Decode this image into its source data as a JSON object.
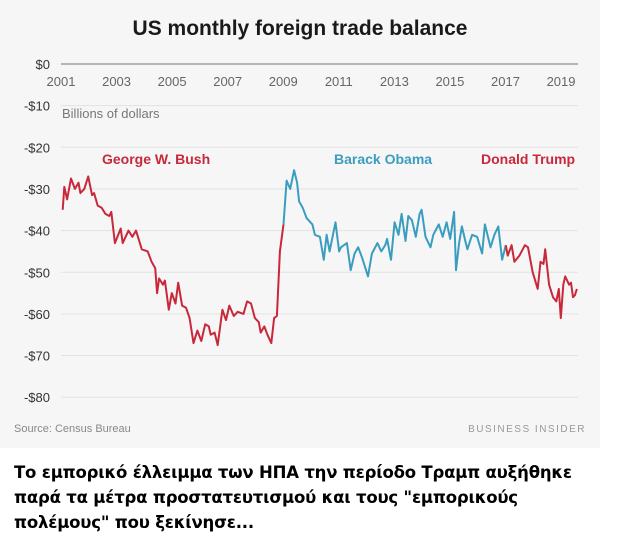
{
  "caption": "Το εμπορικό έλλειμμα των ΗΠΑ την περίοδο Τραμπ αυξήθηκε παρά τα μέτρα προστατευτισμού και τους \"εμπορικούς πολέμους\" που ξεκίνησε...",
  "chart_data": {
    "type": "line",
    "title": "US monthly foreign trade balance",
    "ylabel": "Billions of dollars",
    "xlabel": "",
    "source": "Source: Census Bureau",
    "brand": "BUSINESS INSIDER",
    "xlim": [
      2001,
      2019.6
    ],
    "ylim": [
      -80,
      0
    ],
    "x_ticks": [
      "2001",
      "2003",
      "2005",
      "2007",
      "2009",
      "2011",
      "2013",
      "2015",
      "2017",
      "2019"
    ],
    "y_ticks": [
      {
        "v": 0,
        "label": "$0"
      },
      {
        "v": -10,
        "label": "-$10"
      },
      {
        "v": -20,
        "label": "-$20"
      },
      {
        "v": -30,
        "label": "-$30"
      },
      {
        "v": -40,
        "label": "-$40"
      },
      {
        "v": -50,
        "label": "-$50"
      },
      {
        "v": -60,
        "label": "-$60"
      },
      {
        "v": -70,
        "label": "-$70"
      },
      {
        "v": -80,
        "label": "-$80"
      }
    ],
    "grid": true,
    "series": [
      {
        "name": "George W. Bush",
        "color": "#c8283a",
        "label_year": 2003.3,
        "points": [
          [
            2001.06,
            -35
          ],
          [
            2001.12,
            -29.5
          ],
          [
            2001.22,
            -32.5
          ],
          [
            2001.36,
            -27.5
          ],
          [
            2001.5,
            -30
          ],
          [
            2001.63,
            -28.5
          ],
          [
            2001.7,
            -31
          ],
          [
            2001.84,
            -30
          ],
          [
            2001.98,
            -27
          ],
          [
            2002.12,
            -31.5
          ],
          [
            2002.19,
            -31
          ],
          [
            2002.32,
            -34
          ],
          [
            2002.46,
            -34.5
          ],
          [
            2002.6,
            -36
          ],
          [
            2002.74,
            -36.5
          ],
          [
            2002.81,
            -35.5
          ],
          [
            2002.94,
            -43
          ],
          [
            2003.15,
            -39.5
          ],
          [
            2003.22,
            -43
          ],
          [
            2003.43,
            -40
          ],
          [
            2003.57,
            -41.5
          ],
          [
            2003.7,
            -40
          ],
          [
            2003.91,
            -44.5
          ],
          [
            2004.12,
            -45
          ],
          [
            2004.26,
            -47.5
          ],
          [
            2004.39,
            -49
          ],
          [
            2004.46,
            -55
          ],
          [
            2004.53,
            -51.5
          ],
          [
            2004.67,
            -53
          ],
          [
            2004.74,
            -52
          ],
          [
            2004.88,
            -59
          ],
          [
            2004.99,
            -55
          ],
          [
            2005.12,
            -57.5
          ],
          [
            2005.22,
            -52.5
          ],
          [
            2005.36,
            -58
          ],
          [
            2005.5,
            -58.5
          ],
          [
            2005.63,
            -61
          ],
          [
            2005.77,
            -67
          ],
          [
            2005.91,
            -64
          ],
          [
            2006.05,
            -66.5
          ],
          [
            2006.19,
            -62.5
          ],
          [
            2006.32,
            -63
          ],
          [
            2006.39,
            -65
          ],
          [
            2006.53,
            -64.5
          ],
          [
            2006.64,
            -67.5
          ],
          [
            2006.81,
            -59
          ],
          [
            2006.94,
            -61.5
          ],
          [
            2007.06,
            -58
          ],
          [
            2007.22,
            -60.5
          ],
          [
            2007.36,
            -59.5
          ],
          [
            2007.57,
            -60
          ],
          [
            2007.7,
            -57
          ],
          [
            2007.84,
            -57.5
          ],
          [
            2007.98,
            -61
          ],
          [
            2008.12,
            -62
          ],
          [
            2008.19,
            -64.5
          ],
          [
            2008.32,
            -63
          ],
          [
            2008.43,
            -65
          ],
          [
            2008.57,
            -67
          ],
          [
            2008.67,
            -61
          ],
          [
            2008.77,
            -60.5
          ],
          [
            2008.88,
            -45
          ],
          [
            2009.01,
            -38.5
          ]
        ]
      },
      {
        "name": "Barack Obama",
        "color": "#3a9dbf",
        "label_year": 2012.3,
        "points": [
          [
            2009.01,
            -38.5
          ],
          [
            2009.12,
            -28
          ],
          [
            2009.25,
            -30
          ],
          [
            2009.39,
            -25.5
          ],
          [
            2009.5,
            -28.5
          ],
          [
            2009.57,
            -33
          ],
          [
            2009.7,
            -34.5
          ],
          [
            2009.84,
            -37
          ],
          [
            2010.05,
            -38.5
          ],
          [
            2010.14,
            -41
          ],
          [
            2010.32,
            -41.5
          ],
          [
            2010.46,
            -47
          ],
          [
            2010.56,
            -41
          ],
          [
            2010.67,
            -45
          ],
          [
            2010.88,
            -38
          ],
          [
            2011.01,
            -45
          ],
          [
            2011.08,
            -44
          ],
          [
            2011.29,
            -43
          ],
          [
            2011.43,
            -49.5
          ],
          [
            2011.57,
            -45.5
          ],
          [
            2011.7,
            -44
          ],
          [
            2011.84,
            -46.5
          ],
          [
            2012.05,
            -51
          ],
          [
            2012.19,
            -45.5
          ],
          [
            2012.39,
            -43
          ],
          [
            2012.53,
            -45
          ],
          [
            2012.67,
            -43.5
          ],
          [
            2012.74,
            -42
          ],
          [
            2012.88,
            -47
          ],
          [
            2013.01,
            -38
          ],
          [
            2013.15,
            -41
          ],
          [
            2013.26,
            -36
          ],
          [
            2013.4,
            -42.5
          ],
          [
            2013.5,
            -36.5
          ],
          [
            2013.63,
            -37.5
          ],
          [
            2013.77,
            -41.5
          ],
          [
            2013.91,
            -36
          ],
          [
            2013.98,
            -35
          ],
          [
            2014.12,
            -41.5
          ],
          [
            2014.3,
            -44
          ],
          [
            2014.4,
            -41
          ],
          [
            2014.6,
            -38.5
          ],
          [
            2014.74,
            -41.5
          ],
          [
            2014.88,
            -38
          ],
          [
            2015.01,
            -42
          ],
          [
            2015.15,
            -35.5
          ],
          [
            2015.22,
            -49.5
          ],
          [
            2015.33,
            -43
          ],
          [
            2015.43,
            -39
          ],
          [
            2015.57,
            -43
          ],
          [
            2015.63,
            -44.5
          ],
          [
            2015.8,
            -41
          ],
          [
            2015.98,
            -41.5
          ],
          [
            2016.16,
            -45.5
          ],
          [
            2016.26,
            -38.5
          ],
          [
            2016.46,
            -44
          ],
          [
            2016.6,
            -41
          ],
          [
            2016.74,
            -39
          ],
          [
            2016.88,
            -47
          ],
          [
            2017.01,
            -43.5
          ]
        ]
      },
      {
        "name": "Donald Trump",
        "color": "#c8283a",
        "label_year": 2018.05,
        "points": [
          [
            2017.01,
            -43.5
          ],
          [
            2017.08,
            -46
          ],
          [
            2017.22,
            -43.5
          ],
          [
            2017.32,
            -47.5
          ],
          [
            2017.5,
            -46
          ],
          [
            2017.7,
            -43.5
          ],
          [
            2017.81,
            -44
          ],
          [
            2017.98,
            -50
          ],
          [
            2018.16,
            -54
          ],
          [
            2018.26,
            -47.5
          ],
          [
            2018.37,
            -48
          ],
          [
            2018.43,
            -44.5
          ],
          [
            2018.57,
            -53
          ],
          [
            2018.71,
            -56
          ],
          [
            2018.83,
            -57
          ],
          [
            2018.92,
            -54
          ],
          [
            2018.99,
            -61
          ],
          [
            2019.08,
            -53
          ],
          [
            2019.15,
            -51
          ],
          [
            2019.29,
            -53
          ],
          [
            2019.36,
            -52.5
          ],
          [
            2019.43,
            -56
          ],
          [
            2019.5,
            -55.5
          ],
          [
            2019.57,
            -54
          ]
        ]
      }
    ]
  }
}
